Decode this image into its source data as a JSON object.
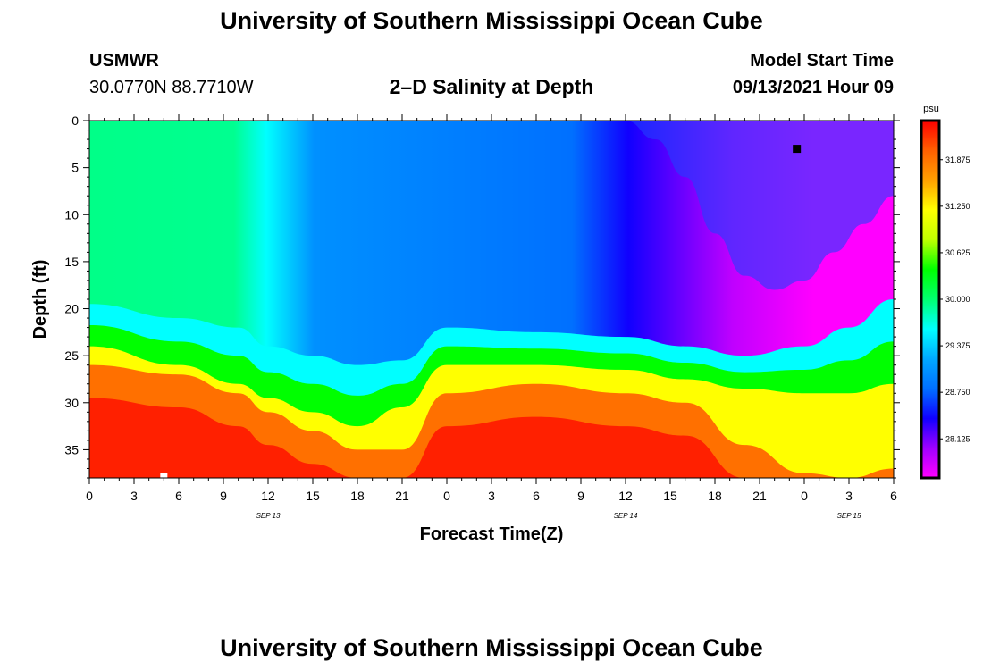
{
  "header": {
    "title": "University of Southern Mississippi Ocean Cube",
    "station": "USMWR",
    "location": "30.0770N  88.7710W",
    "plot_title": "2–D Salinity at Depth",
    "model_label": "Model Start Time",
    "model_time": "09/13/2021 Hour 09"
  },
  "footer": {
    "title": "University of Southern Mississippi Ocean Cube"
  },
  "colors": {
    "scale": [
      "#ff00ff",
      "#a000ff",
      "#1000ff",
      "#0070ff",
      "#00a8ff",
      "#00ffff",
      "#00ff70",
      "#00ff00",
      "#c0ff00",
      "#ffff00",
      "#ffa000",
      "#ff6000",
      "#ff0000"
    ],
    "marker_black": "#000000",
    "marker_white": "#ffffff"
  },
  "chart_data": {
    "type": "heatmap",
    "title": "2–D Salinity at Depth",
    "xlabel": "Forecast Time(Z)",
    "ylabel": "Depth (ft)",
    "x_range_hours": [
      0,
      54
    ],
    "y_range_ft": [
      0,
      38
    ],
    "x_ticks": [
      {
        "h": 0,
        "label": "0"
      },
      {
        "h": 3,
        "label": "3"
      },
      {
        "h": 6,
        "label": "6"
      },
      {
        "h": 9,
        "label": "9"
      },
      {
        "h": 12,
        "label": "12"
      },
      {
        "h": 15,
        "label": "15"
      },
      {
        "h": 18,
        "label": "18"
      },
      {
        "h": 21,
        "label": "21"
      },
      {
        "h": 24,
        "label": "0"
      },
      {
        "h": 27,
        "label": "3"
      },
      {
        "h": 30,
        "label": "6"
      },
      {
        "h": 33,
        "label": "9"
      },
      {
        "h": 36,
        "label": "12"
      },
      {
        "h": 39,
        "label": "15"
      },
      {
        "h": 42,
        "label": "18"
      },
      {
        "h": 45,
        "label": "21"
      },
      {
        "h": 48,
        "label": "0"
      },
      {
        "h": 51,
        "label": "3"
      },
      {
        "h": 54,
        "label": "6"
      }
    ],
    "date_labels": [
      {
        "h": 12,
        "label": "SEP 13"
      },
      {
        "h": 36,
        "label": "SEP 14"
      },
      {
        "h": 51,
        "label": "SEP 15"
      }
    ],
    "y_ticks": [
      0,
      5,
      10,
      15,
      20,
      25,
      30,
      35
    ],
    "colorbar": {
      "unit": "psu",
      "min": 27.6,
      "max": 32.4,
      "labels": [
        "31.875",
        "31.250",
        "30.625",
        "30.000",
        "29.375",
        "28.750",
        "28.125"
      ]
    },
    "layers": [
      {
        "name": "mixed-top",
        "x": [
          0,
          6,
          10,
          12,
          15,
          18,
          21,
          24,
          30,
          36,
          40,
          44,
          48,
          51,
          54
        ],
        "y": [
          19.5,
          21,
          22,
          24,
          25,
          26,
          25.5,
          22,
          22.5,
          23,
          24,
          25,
          24,
          22,
          19
        ]
      },
      {
        "name": "halocline-mid",
        "x": [
          0,
          6,
          10,
          12,
          15,
          18,
          21,
          24,
          30,
          36,
          40,
          44,
          48,
          51,
          54
        ],
        "y": [
          24,
          26,
          28,
          29.5,
          31,
          32.5,
          30.5,
          26,
          26,
          26.5,
          27.5,
          28.5,
          29,
          29,
          28
        ]
      },
      {
        "name": "halocline-bottom",
        "x": [
          0,
          6,
          10,
          12,
          15,
          18,
          21,
          24,
          30,
          36,
          40,
          44,
          48,
          51,
          54
        ],
        "y": [
          26,
          27,
          29,
          31,
          33,
          35,
          35,
          29,
          28,
          29,
          30,
          34.5,
          37.5,
          38,
          37
        ]
      },
      {
        "name": "fresh-core",
        "x": [
          36,
          38,
          40,
          42,
          44,
          46,
          48,
          50,
          52,
          54
        ],
        "y": [
          0,
          2,
          6,
          12,
          16.5,
          18,
          17,
          14,
          11,
          8
        ]
      }
    ],
    "points": [
      {
        "name": "black-marker",
        "h": 47.5,
        "d": 3
      },
      {
        "name": "white-marker",
        "h": 5,
        "d": 38
      }
    ]
  }
}
